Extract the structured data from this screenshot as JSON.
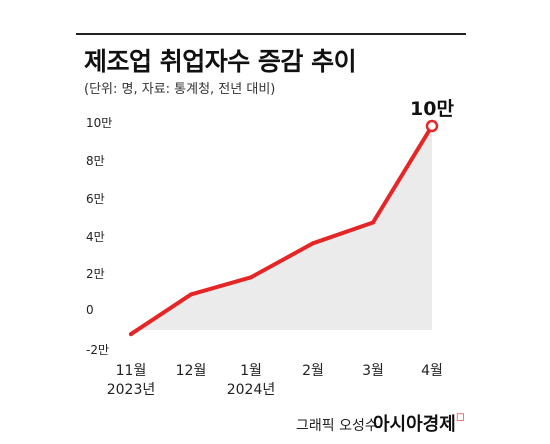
{
  "chart_data": {
    "type": "line",
    "title": "제조업 취업자수 증감 추이",
    "subtitle": "(단위: 명, 자료: 통계청, 전년 대비)",
    "categories": [
      "11월",
      "12월",
      "1월",
      "2월",
      "3월",
      "4월"
    ],
    "category_years": [
      "2023년",
      "",
      "2024년",
      "",
      "",
      ""
    ],
    "values": [
      -10000,
      11000,
      20000,
      38000,
      49000,
      100000
    ],
    "y_ticks": [
      {
        "value": 100000,
        "label": "10만"
      },
      {
        "value": 80000,
        "label": "8만"
      },
      {
        "value": 60000,
        "label": "6만"
      },
      {
        "value": 40000,
        "label": "4만"
      },
      {
        "value": 20000,
        "label": "2만"
      },
      {
        "value": 0,
        "label": "0"
      },
      {
        "value": -20000,
        "label": "-2만"
      }
    ],
    "ylim": [
      -20000,
      100000
    ],
    "highlight": {
      "index": 5,
      "label": "10만"
    },
    "line_color": "#e52626",
    "area_color": "#ebebeb",
    "grid": false
  },
  "footer": {
    "credit": "그래픽 오성수",
    "brand": "아시아경제"
  }
}
